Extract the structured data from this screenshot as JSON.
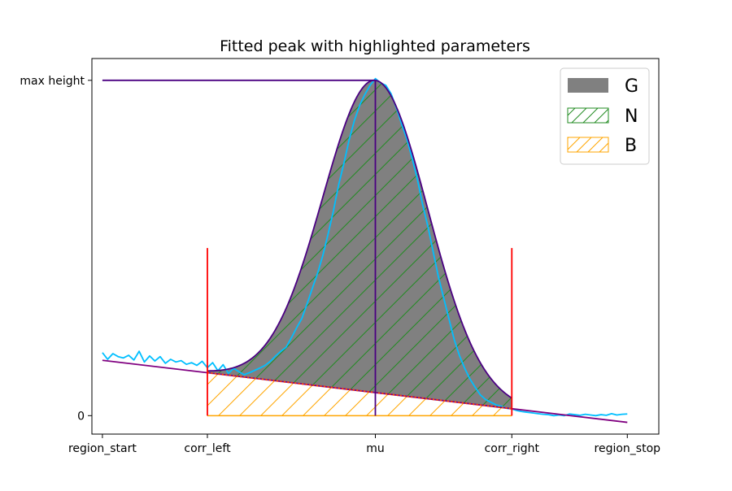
{
  "colors": {
    "gaussian_fill": "#808080",
    "N_hatch": "#228b22",
    "B_hatch": "#ffa500",
    "data_line": "#00bfff",
    "model_line": "#4b0082",
    "background_line": "#800080",
    "bound_line": "#ff0000",
    "dotted_line": "#ff4500",
    "max_height_line": "#4b0082"
  },
  "chart_data": {
    "type": "line",
    "title": "Fitted peak with highlighted parameters",
    "xlabel": "",
    "ylabel": "",
    "xlim": [
      -0.5,
      26.5
    ],
    "ylim": [
      -0.055,
      1.065
    ],
    "grid": false,
    "legend_position": "top-right",
    "x_ticks": [
      {
        "value": 0,
        "label": "region_start"
      },
      {
        "value": 5,
        "label": "corr_left"
      },
      {
        "value": 13,
        "label": "mu"
      },
      {
        "value": 19.5,
        "label": "corr_right"
      },
      {
        "value": 25,
        "label": "region_stop"
      }
    ],
    "y_ticks": [
      {
        "value": 0,
        "label": "0"
      },
      {
        "value": 1,
        "label": "max height"
      }
    ],
    "params": {
      "region_start": 0,
      "corr_left": 5,
      "mu": 13,
      "corr_right": 19.5,
      "region_stop": 25,
      "max_height": 1,
      "sigma": 2.5,
      "background_start": 0.165,
      "background_stop": -0.02,
      "bound_line_height": 0.5
    },
    "legend": [
      {
        "label": "G",
        "style": "solid-fill"
      },
      {
        "label": "N",
        "style": "hatch-green"
      },
      {
        "label": "B",
        "style": "hatch-orange"
      }
    ],
    "series": [
      {
        "name": "",
        "role": "data",
        "x": [
          0,
          0.25,
          0.5,
          0.75,
          1,
          1.25,
          1.5,
          1.75,
          2,
          2.25,
          2.5,
          2.75,
          3,
          3.25,
          3.5,
          3.75,
          4,
          4.25,
          4.5,
          4.75,
          5,
          5.25,
          5.5,
          5.75,
          6,
          6.25,
          6.5,
          6.75,
          7,
          7.25,
          7.5,
          7.75,
          8,
          8.25,
          8.5,
          8.75,
          9,
          9.25,
          9.5,
          9.75,
          10,
          10.25,
          10.5,
          10.75,
          11,
          11.25,
          11.5,
          11.75,
          12,
          12.25,
          12.5,
          12.75,
          13,
          13.25,
          13.5,
          13.75,
          14,
          14.25,
          14.5,
          14.75,
          15,
          15.25,
          15.5,
          15.75,
          16,
          16.25,
          16.5,
          16.75,
          17,
          17.25,
          17.5,
          17.75,
          18,
          18.25,
          18.5,
          18.75,
          19,
          19.25,
          19.5,
          19.75,
          20,
          20.25,
          20.5,
          20.75,
          21,
          21.25,
          21.5,
          21.75,
          22,
          22.25,
          22.5,
          22.75,
          23,
          23.25,
          23.5,
          23.75,
          24,
          24.25,
          24.5,
          24.75,
          25
        ],
        "y": [
          0.188,
          0.168,
          0.185,
          0.176,
          0.172,
          0.18,
          0.166,
          0.192,
          0.16,
          0.178,
          0.163,
          0.176,
          0.156,
          0.168,
          0.16,
          0.164,
          0.153,
          0.158,
          0.15,
          0.162,
          0.143,
          0.158,
          0.134,
          0.152,
          0.126,
          0.141,
          0.131,
          0.122,
          0.128,
          0.135,
          0.142,
          0.15,
          0.162,
          0.178,
          0.192,
          0.204,
          0.232,
          0.262,
          0.29,
          0.334,
          0.38,
          0.425,
          0.478,
          0.542,
          0.61,
          0.688,
          0.752,
          0.822,
          0.88,
          0.925,
          0.958,
          0.985,
          1.005,
          0.992,
          0.985,
          0.96,
          0.918,
          0.87,
          0.825,
          0.768,
          0.705,
          0.63,
          0.565,
          0.49,
          0.415,
          0.352,
          0.29,
          0.228,
          0.18,
          0.142,
          0.11,
          0.085,
          0.062,
          0.048,
          0.04,
          0.032,
          0.028,
          0.022,
          0.02,
          0.015,
          0.012,
          0.01,
          0.008,
          0.006,
          0.004,
          0.003,
          0.0,
          0.002,
          0.0,
          0.005,
          0.003,
          0.001,
          0.004,
          0.002,
          0.0,
          0.003,
          0.001,
          0.006,
          0.002,
          0.004,
          0.005
        ]
      },
      {
        "name": "",
        "role": "model",
        "x_range": [
          5,
          25
        ],
        "formula": "background(x) + (max_height - background(mu)) * exp(-(x-mu)^2 / (2*sigma^2))"
      },
      {
        "name": "",
        "role": "background",
        "x": [
          0,
          25
        ],
        "y": [
          0.165,
          -0.02
        ]
      }
    ]
  }
}
